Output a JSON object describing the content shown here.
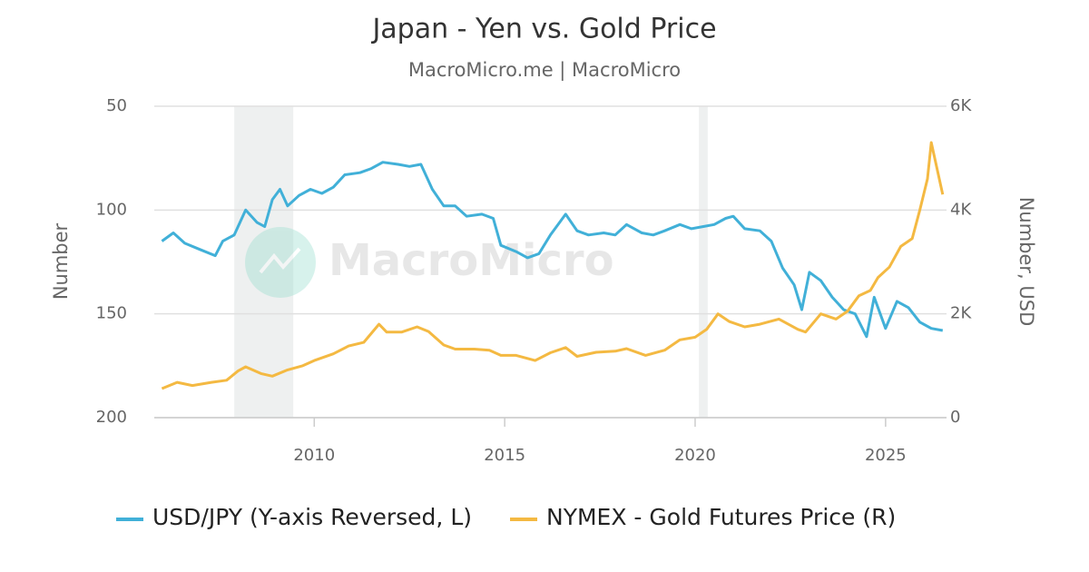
{
  "chart_data": {
    "type": "line",
    "title": "Japan - Yen vs. Gold Price",
    "subtitle": "MacroMicro.me | MacroMicro",
    "watermark": "MacroMicro",
    "y_label": "Number",
    "y2_label": "Number, USD",
    "xlim": [
      2005.8,
      2026.6
    ],
    "xticks": [
      2010,
      2015,
      2020,
      2025
    ],
    "ylim": [
      50,
      200
    ],
    "y_reversed": true,
    "yticks": [
      50,
      100,
      150,
      200
    ],
    "y2lim": [
      0,
      6000
    ],
    "y2ticks": [
      {
        "value": 6000,
        "label": "6K"
      },
      {
        "value": 4000,
        "label": "4K"
      },
      {
        "value": 2000,
        "label": "2K"
      },
      0
    ],
    "grid": true,
    "shaded_ranges": [
      [
        2007.9,
        2009.45
      ],
      [
        2020.1,
        2020.33
      ]
    ],
    "legend": "bottom",
    "series": [
      {
        "name": "USD/JPY (Y-axis Reversed, L)",
        "color": "#41b0d8",
        "axis": "y",
        "x": [
          2006.0,
          2006.3,
          2006.6,
          2007.0,
          2007.4,
          2007.6,
          2007.9,
          2008.2,
          2008.5,
          2008.7,
          2008.9,
          2009.1,
          2009.3,
          2009.6,
          2009.9,
          2010.2,
          2010.5,
          2010.8,
          2011.2,
          2011.5,
          2011.8,
          2012.2,
          2012.5,
          2012.8,
          2013.1,
          2013.4,
          2013.7,
          2014.0,
          2014.4,
          2014.7,
          2014.9,
          2015.3,
          2015.6,
          2015.9,
          2016.2,
          2016.6,
          2016.9,
          2017.2,
          2017.6,
          2017.9,
          2018.2,
          2018.6,
          2018.9,
          2019.2,
          2019.6,
          2019.9,
          2020.2,
          2020.5,
          2020.8,
          2021.0,
          2021.3,
          2021.7,
          2022.0,
          2022.3,
          2022.6,
          2022.8,
          2023.0,
          2023.3,
          2023.6,
          2023.9,
          2024.2,
          2024.5,
          2024.7,
          2025.0,
          2025.3,
          2025.6,
          2025.9,
          2026.2,
          2026.5
        ],
        "values": [
          115,
          111,
          116,
          119,
          122,
          115,
          112,
          100,
          106,
          108,
          95,
          90,
          98,
          93,
          90,
          92,
          89,
          83,
          82,
          80,
          77,
          78,
          79,
          78,
          90,
          98,
          98,
          103,
          102,
          104,
          117,
          120,
          123,
          121,
          112,
          102,
          110,
          112,
          111,
          112,
          107,
          111,
          112,
          110,
          107,
          109,
          108,
          107,
          104,
          103,
          109,
          110,
          115,
          128,
          136,
          148,
          130,
          134,
          142,
          148,
          150,
          161,
          142,
          157,
          144,
          147,
          154,
          157,
          158
        ]
      },
      {
        "name": "NYMEX - Gold Futures Price (R)",
        "color": "#f4b942",
        "axis": "y2",
        "x": [
          2006.0,
          2006.4,
          2006.8,
          2007.3,
          2007.7,
          2008.0,
          2008.2,
          2008.6,
          2008.9,
          2009.3,
          2009.7,
          2010.0,
          2010.5,
          2010.9,
          2011.3,
          2011.7,
          2011.9,
          2012.3,
          2012.7,
          2013.0,
          2013.4,
          2013.7,
          2014.2,
          2014.6,
          2014.9,
          2015.3,
          2015.8,
          2016.2,
          2016.6,
          2016.9,
          2017.4,
          2017.9,
          2018.2,
          2018.7,
          2019.2,
          2019.6,
          2020.0,
          2020.3,
          2020.6,
          2020.9,
          2021.3,
          2021.7,
          2022.2,
          2022.7,
          2022.9,
          2023.3,
          2023.7,
          2024.0,
          2024.3,
          2024.6,
          2024.8,
          2025.1,
          2025.4,
          2025.7,
          2025.9,
          2026.1,
          2026.2,
          2026.35,
          2026.5
        ],
        "values": [
          560,
          680,
          620,
          680,
          720,
          900,
          980,
          850,
          800,
          920,
          1000,
          1100,
          1230,
          1380,
          1450,
          1800,
          1650,
          1650,
          1750,
          1660,
          1400,
          1320,
          1320,
          1300,
          1200,
          1200,
          1100,
          1250,
          1350,
          1180,
          1260,
          1280,
          1330,
          1200,
          1300,
          1500,
          1550,
          1700,
          2000,
          1850,
          1750,
          1800,
          1900,
          1700,
          1650,
          2000,
          1900,
          2050,
          2350,
          2450,
          2700,
          2900,
          3300,
          3450,
          4000,
          4600,
          5300,
          4800,
          4300
        ]
      }
    ]
  }
}
